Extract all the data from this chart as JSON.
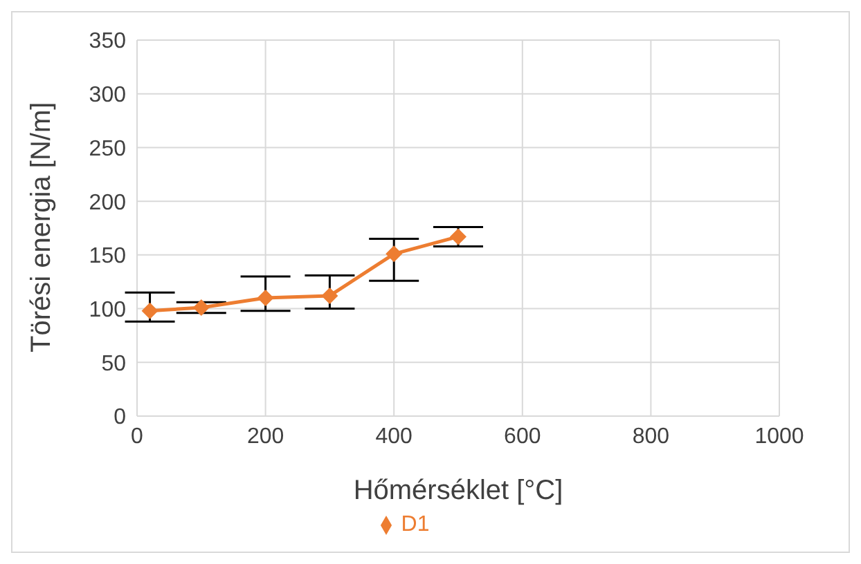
{
  "chart_data": {
    "type": "line",
    "xlabel": "Hőmérséklet [°C]",
    "ylabel": "Törési energia [N/m]",
    "x": [
      20,
      100,
      200,
      300,
      400,
      500
    ],
    "series": [
      {
        "name": "D1",
        "color": "#ed7d31",
        "values": [
          98,
          101,
          110,
          112,
          151,
          167
        ],
        "errors": [
          [
            88,
            115
          ],
          [
            96,
            106
          ],
          [
            98,
            130
          ],
          [
            100,
            131
          ],
          [
            126,
            165
          ],
          [
            158,
            176
          ]
        ]
      }
    ],
    "xlim": [
      0,
      1000
    ],
    "xticks": [
      0,
      200,
      400,
      600,
      800,
      1000
    ],
    "ylim": [
      0,
      350
    ],
    "yticks": [
      0,
      50,
      100,
      150,
      200,
      250,
      300,
      350
    ],
    "grid": true,
    "legend": "bottom",
    "marker": "diamond",
    "line_style": "solid"
  }
}
